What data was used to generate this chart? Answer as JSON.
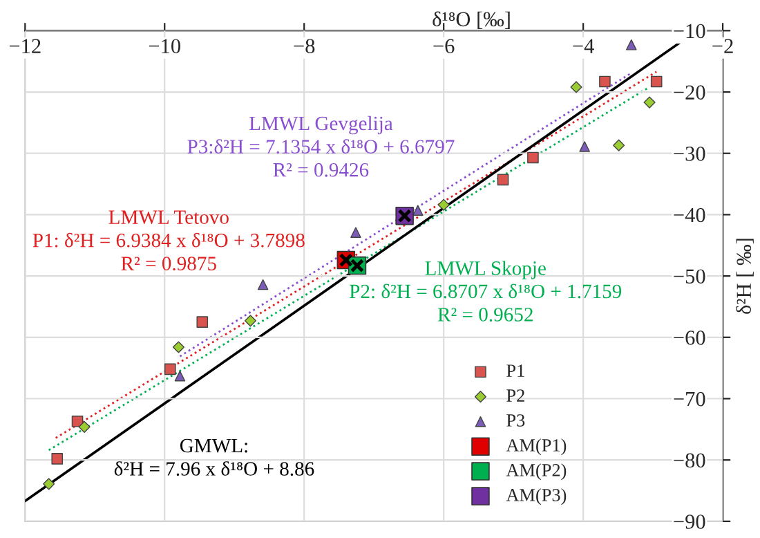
{
  "chart_data": {
    "type": "scatter",
    "xlabel": "δ¹⁸O [‰]",
    "ylabel": "δ²H [ ‰]",
    "xlim": [
      -12,
      -2
    ],
    "ylim": [
      -90,
      -10
    ],
    "xticks": [
      {
        "value": -12,
        "label": "−12"
      },
      {
        "value": -10,
        "label": "−10"
      },
      {
        "value": -8,
        "label": "−8"
      },
      {
        "value": -6,
        "label": "−6"
      },
      {
        "value": -4,
        "label": "−4"
      },
      {
        "value": -2,
        "label": "−2"
      }
    ],
    "yticks": [
      {
        "value": -90,
        "label": "−90"
      },
      {
        "value": -80,
        "label": "−80"
      },
      {
        "value": -70,
        "label": "−70"
      },
      {
        "value": -60,
        "label": "−60"
      },
      {
        "value": -50,
        "label": "−50"
      },
      {
        "value": -40,
        "label": "−40"
      },
      {
        "value": -30,
        "label": "−30"
      },
      {
        "value": -20,
        "label": "−20"
      },
      {
        "value": -10,
        "label": "−10"
      }
    ],
    "grid": true,
    "legend": "bottom right",
    "series": [
      {
        "name": "P1",
        "marker": "square",
        "color": "#d9534f",
        "x": [
          -3.69,
          -2.95,
          -4.72,
          -5.15,
          -9.46,
          -9.92,
          -11.25,
          -11.54
        ],
        "values": [
          -18.3,
          -18.3,
          -30.7,
          -34.3,
          -57.5,
          -65.2,
          -73.7,
          -79.8
        ]
      },
      {
        "name": "P2",
        "marker": "diamond",
        "color": "#9acd32",
        "x": [
          -4.1,
          -3.05,
          -3.49,
          -6.0,
          -8.77,
          -9.8,
          -11.15,
          -11.66
        ],
        "values": [
          -19.2,
          -21.7,
          -28.7,
          -38.4,
          -57.3,
          -61.6,
          -74.6,
          -83.9
        ]
      },
      {
        "name": "P3",
        "marker": "triangle",
        "color": "#7b5cb8",
        "x": [
          -3.31,
          -3.98,
          -6.37,
          -7.26,
          -8.59,
          -9.78
        ],
        "values": [
          -12.3,
          -28.9,
          -39.3,
          -42.9,
          -51.4,
          -66.3
        ]
      },
      {
        "name": "AM(P1)",
        "marker": "square",
        "color": "#e00000",
        "x": [
          -7.4
        ],
        "values": [
          -47.4
        ]
      },
      {
        "name": "AM(P2)",
        "marker": "square",
        "color": "#00b050",
        "x": [
          -7.24
        ],
        "values": [
          -48.3
        ]
      },
      {
        "name": "AM(P3)",
        "marker": "square",
        "color": "#7030a0",
        "x": [
          -6.56
        ],
        "values": [
          -40.2
        ]
      },
      {
        "type": "line",
        "line_style": "dotted",
        "color": "#8a4fd0",
        "x": [
          -9.78,
          -3.31
        ],
        "values": [
          -63.1,
          -16.9
        ]
      },
      {
        "type": "line",
        "line_style": "dotted",
        "color": "#e02020",
        "x": [
          -11.56,
          -2.95
        ],
        "values": [
          -76.4,
          -16.7
        ]
      },
      {
        "type": "line",
        "line_style": "dotted",
        "color": "#00b050",
        "x": [
          -11.66,
          -3.05
        ],
        "values": [
          -78.4,
          -19.2
        ]
      },
      {
        "type": "line",
        "line_style": "solid",
        "color": "#000000",
        "x": [
          -12,
          -2.37
        ],
        "values": [
          -86.7,
          -10.0
        ]
      }
    ],
    "annotations": [
      "LMWL Gevgelija\nP3:δ²H = 7.1354 x δ¹⁸O + 6.6797\nR² = 0.9426",
      "LMWL Tetovo\nP1: δ²H = 6.9384 x δ¹⁸O + 3.7898\nR² = 0.9875",
      "LMWL Skopje\nP2: δ²H = 6.8707 x δ¹⁸O + 1.7159\nR² = 0.9652",
      "GMWL:\nδ²H = 7.96 x δ¹⁸O + 8.86"
    ]
  }
}
